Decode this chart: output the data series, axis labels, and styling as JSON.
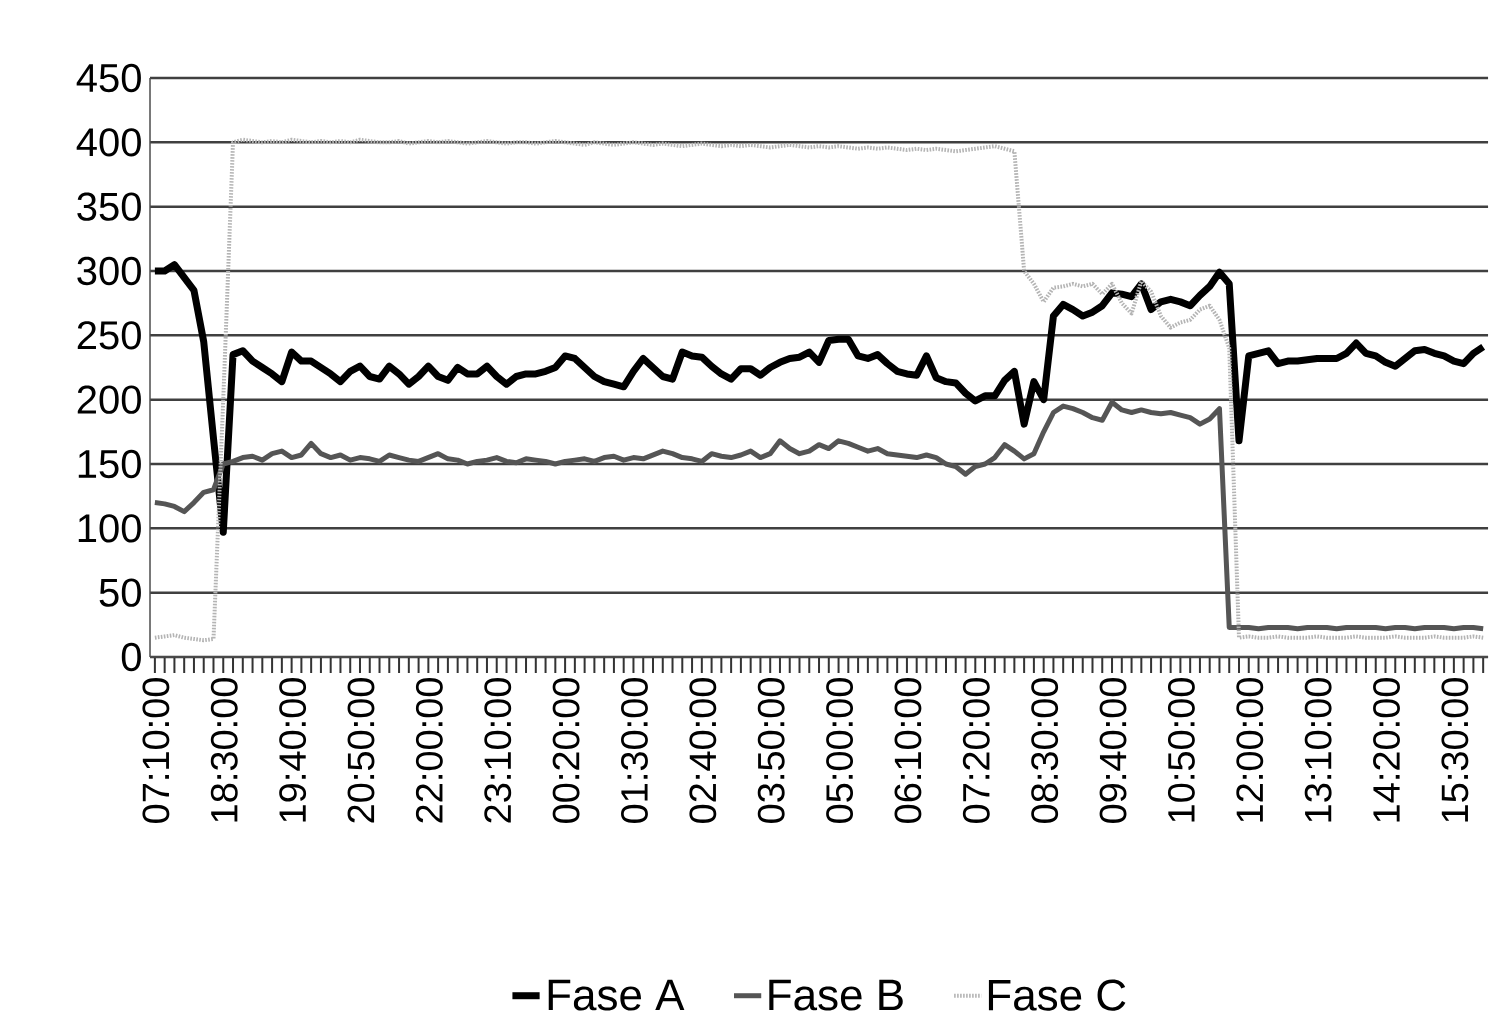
{
  "chart_data": {
    "type": "line",
    "categories": [
      "07:10:00",
      null,
      null,
      null,
      null,
      null,
      null,
      "18:30:00",
      null,
      null,
      null,
      null,
      null,
      null,
      "19:40:00",
      null,
      null,
      null,
      null,
      null,
      null,
      "20:50:00",
      null,
      null,
      null,
      null,
      null,
      null,
      "22:00:00",
      null,
      null,
      null,
      null,
      null,
      null,
      "23:10:00",
      null,
      null,
      null,
      null,
      null,
      null,
      "00:20:00",
      null,
      null,
      null,
      null,
      null,
      null,
      "01:30:00",
      null,
      null,
      null,
      null,
      null,
      null,
      "02:40:00",
      null,
      null,
      null,
      null,
      null,
      null,
      "03:50:00",
      null,
      null,
      null,
      null,
      null,
      null,
      "05:00:00",
      null,
      null,
      null,
      null,
      null,
      null,
      "06:10:00",
      null,
      null,
      null,
      null,
      null,
      null,
      "07:20:00",
      null,
      null,
      null,
      null,
      null,
      null,
      "08:30:00",
      null,
      null,
      null,
      null,
      null,
      null,
      "09:40:00",
      null,
      null,
      null,
      null,
      null,
      null,
      "10:50:00",
      null,
      null,
      null,
      null,
      null,
      null,
      "12:00:00",
      null,
      null,
      null,
      null,
      null,
      null,
      "13:10:00",
      null,
      null,
      null,
      null,
      null,
      null,
      "14:20:00",
      null,
      null,
      null,
      null,
      null,
      null,
      "15:30:00",
      null,
      null,
      null
    ],
    "series": [
      {
        "name": "Fase A",
        "color": "#000000",
        "line_style": "solid",
        "values": [
          300,
          300,
          305,
          295,
          285,
          245,
          170,
          97,
          235,
          238,
          230,
          225,
          220,
          214,
          237,
          230,
          230,
          225,
          220,
          214,
          222,
          226,
          218,
          216,
          226,
          220,
          212,
          218,
          226,
          218,
          215,
          225,
          220,
          220,
          226,
          218,
          212,
          218,
          220,
          220,
          222,
          225,
          234,
          232,
          225,
          218,
          214,
          212,
          210,
          222,
          232,
          225,
          218,
          216,
          237,
          234,
          233,
          226,
          220,
          216,
          224,
          224,
          219,
          225,
          229,
          232,
          233,
          237,
          229,
          246,
          247,
          247,
          234,
          232,
          235,
          228,
          222,
          220,
          219,
          234,
          217,
          214,
          213,
          205,
          199,
          203,
          203,
          215,
          222,
          181,
          214,
          200,
          265,
          274,
          270,
          265,
          268,
          273,
          283,
          282,
          280,
          290,
          270,
          276,
          278,
          276,
          273,
          281,
          288,
          299,
          290,
          168,
          234,
          236,
          238,
          228,
          230,
          230,
          231,
          232,
          232,
          232,
          236,
          244,
          236,
          234,
          229,
          226,
          232,
          238,
          239,
          236,
          234,
          230,
          228,
          236,
          241
        ]
      },
      {
        "name": "Fase B",
        "color": "#555555",
        "line_style": "solid",
        "values": [
          120,
          119,
          117,
          113,
          120,
          128,
          130,
          150,
          152,
          155,
          156,
          153,
          158,
          160,
          155,
          157,
          166,
          158,
          155,
          157,
          153,
          155,
          154,
          152,
          157,
          155,
          153,
          152,
          155,
          158,
          154,
          153,
          150,
          152,
          153,
          155,
          152,
          151,
          154,
          153,
          152,
          150,
          152,
          153,
          154,
          152,
          155,
          156,
          153,
          155,
          154,
          157,
          160,
          158,
          155,
          154,
          152,
          158,
          156,
          155,
          157,
          160,
          155,
          158,
          168,
          162,
          158,
          160,
          165,
          162,
          168,
          166,
          163,
          160,
          162,
          158,
          157,
          156,
          155,
          157,
          155,
          150,
          148,
          142,
          148,
          150,
          155,
          165,
          160,
          154,
          158,
          175,
          190,
          195,
          193,
          190,
          186,
          184,
          198,
          192,
          190,
          192,
          190,
          189,
          190,
          188,
          186,
          181,
          185,
          193,
          23,
          23,
          23,
          22,
          23,
          23,
          23,
          22,
          23,
          23,
          23,
          22,
          23,
          23,
          23,
          23,
          22,
          23,
          23,
          22,
          23,
          23,
          23,
          22,
          23,
          23,
          22
        ]
      },
      {
        "name": "Fase C",
        "color": "#b4b4b4",
        "line_style": "dotted",
        "values": [
          15,
          16,
          17,
          15,
          14,
          13,
          14,
          200,
          400,
          402,
          401,
          400,
          401,
          400,
          402,
          401,
          400,
          401,
          400,
          401,
          400,
          402,
          401,
          400,
          400,
          401,
          399,
          400,
          401,
          400,
          401,
          400,
          399,
          400,
          401,
          400,
          399,
          400,
          400,
          399,
          400,
          401,
          400,
          399,
          398,
          400,
          399,
          398,
          399,
          400,
          399,
          398,
          399,
          398,
          397,
          398,
          399,
          398,
          397,
          398,
          397,
          398,
          397,
          396,
          397,
          398,
          397,
          396,
          397,
          396,
          397,
          396,
          395,
          396,
          395,
          396,
          395,
          394,
          395,
          394,
          395,
          394,
          393,
          394,
          395,
          396,
          397,
          395,
          393,
          300,
          290,
          276,
          287,
          288,
          290,
          288,
          290,
          282,
          290,
          275,
          267,
          292,
          284,
          265,
          256,
          260,
          262,
          270,
          273,
          262,
          240,
          15,
          16,
          15,
          15,
          16,
          15,
          15,
          15,
          16,
          15,
          15,
          15,
          16,
          15,
          15,
          15,
          16,
          15,
          15,
          15,
          16,
          15,
          15,
          15,
          16,
          15
        ]
      }
    ],
    "ylim": [
      0,
      450
    ],
    "yticks": [
      0,
      50,
      100,
      150,
      200,
      250,
      300,
      350,
      400,
      450
    ],
    "grid": "y",
    "legend": "bottom"
  }
}
